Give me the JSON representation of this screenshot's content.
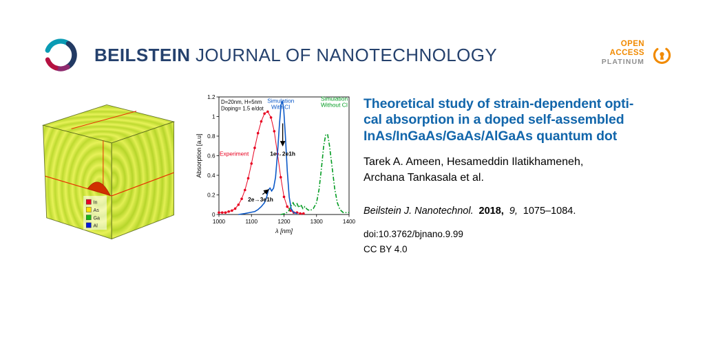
{
  "theme": {
    "navy": "#25416d",
    "accent_blue": "#1266ab",
    "orange": "#f18a00",
    "gray": "#8f8f8f"
  },
  "header": {
    "brand_bold": "BEILSTEIN",
    "brand_rest": "JOURNAL OF NANOTECHNOLOGY",
    "open_access": {
      "line1": "OPEN",
      "line2": "ACCESS",
      "line3": "PLATINUM"
    }
  },
  "article": {
    "title_line1": "Theoretical study of strain-dependent opti-",
    "title_line2": "cal absorption in a doped self-assembled",
    "title_line3": "InAs/InGaAs/GaAs/AlGaAs quantum dot",
    "authors_line1": "Tarek A. Ameen, Hesameddin Ilatikhameneh,",
    "authors_line2": "Archana Tankasala et al.",
    "citation": {
      "journal": "Beilstein J. Nanotechnol.",
      "year": "2018,",
      "volume": "9,",
      "pages": "1075–1084."
    },
    "doi": "doi:10.3762/bjnano.9.99",
    "license": "CC BY 4.0"
  },
  "cube_figure": {
    "legend": [
      {
        "label": "In",
        "color": "#e60026"
      },
      {
        "label": "As",
        "color": "#ffe200"
      },
      {
        "label": "Ga",
        "color": "#18b418"
      },
      {
        "label": "Al",
        "color": "#0018d8"
      }
    ]
  },
  "chart_data": {
    "type": "line",
    "title": "",
    "xlabel": "λ [nm]",
    "ylabel": "Absorption [a.u]",
    "xlim": [
      1000,
      1400
    ],
    "ylim": [
      0,
      1.2
    ],
    "x_ticks": [
      1000,
      1100,
      1200,
      1300,
      1400
    ],
    "y_ticks": [
      0,
      0.2,
      0.4,
      0.6,
      0.8,
      1,
      1.2
    ],
    "annotation_lines": [
      "D=20nm, H=5nm",
      "Doping= 1.5 e/dot"
    ],
    "series": [
      {
        "name": "Experiment",
        "color": "#e8001f",
        "style": "marker-line",
        "x": [
          1000,
          1010,
          1020,
          1030,
          1040,
          1050,
          1060,
          1070,
          1080,
          1090,
          1100,
          1110,
          1120,
          1130,
          1140,
          1150,
          1160,
          1170,
          1180,
          1190,
          1200,
          1210,
          1220,
          1230,
          1240,
          1250,
          1260
        ],
        "y": [
          0.02,
          0.02,
          0.02,
          0.03,
          0.04,
          0.06,
          0.1,
          0.16,
          0.25,
          0.37,
          0.52,
          0.68,
          0.83,
          0.95,
          1.03,
          1.05,
          0.99,
          0.85,
          0.62,
          0.38,
          0.18,
          0.08,
          0.04,
          0.02,
          0.02,
          0.01,
          0.01
        ]
      },
      {
        "name": "Simulation With CI",
        "color": "#0a58c8",
        "style": "solid",
        "x": [
          1060,
          1080,
          1095,
          1110,
          1120,
          1130,
          1140,
          1147,
          1152,
          1157,
          1162,
          1168,
          1174,
          1180,
          1186,
          1191,
          1195,
          1199,
          1204,
          1210,
          1216,
          1222,
          1230,
          1240
        ],
        "y": [
          0.0,
          0.01,
          0.02,
          0.03,
          0.05,
          0.08,
          0.12,
          0.18,
          0.25,
          0.27,
          0.24,
          0.27,
          0.38,
          0.62,
          0.92,
          1.12,
          1.16,
          1.08,
          0.82,
          0.45,
          0.18,
          0.06,
          0.02,
          0.01
        ]
      },
      {
        "name": "Simulation Without CI",
        "color": "#009b20",
        "style": "dashdot",
        "x": [
          1190,
          1205,
          1215,
          1222,
          1228,
          1234,
          1240,
          1246,
          1252,
          1258,
          1264,
          1272,
          1280,
          1290,
          1300,
          1308,
          1316,
          1322,
          1328,
          1334,
          1340,
          1348,
          1356,
          1364,
          1372,
          1382,
          1392,
          1400
        ],
        "y": [
          0.0,
          0.01,
          0.04,
          0.09,
          0.12,
          0.08,
          0.11,
          0.07,
          0.1,
          0.06,
          0.08,
          0.05,
          0.04,
          0.06,
          0.12,
          0.26,
          0.5,
          0.7,
          0.81,
          0.82,
          0.7,
          0.48,
          0.26,
          0.12,
          0.05,
          0.02,
          0.02,
          0.02
        ]
      }
    ],
    "text_labels": [
      {
        "lines": [
          "Experiment"
        ],
        "x": 1002,
        "y": 0.6,
        "color": "#e8001f",
        "anchor": "start",
        "bold": false
      },
      {
        "lines": [
          "Simulation",
          "With CI"
        ],
        "x": 1190,
        "y": 1.14,
        "color": "#0a58c8",
        "anchor": "middle",
        "bold": false
      },
      {
        "lines": [
          "Simulation",
          "Without CI"
        ],
        "x": 1396,
        "y": 1.16,
        "color": "#009b20",
        "anchor": "end",
        "bold": false
      },
      {
        "lines": [
          "1e→2e1h"
        ],
        "x": 1196,
        "y": 0.6,
        "color": "#000000",
        "anchor": "middle",
        "bold": true
      },
      {
        "lines": [
          "2e→3e1h"
        ],
        "x": 1128,
        "y": 0.135,
        "color": "#000000",
        "anchor": "middle",
        "bold": true
      }
    ],
    "arrows": [
      {
        "x1": 1196,
        "y1": 0.93,
        "x2": 1196,
        "y2": 0.7
      },
      {
        "x1": 1134,
        "y1": 0.205,
        "x2": 1153,
        "y2": 0.255
      }
    ],
    "legend_position": "none",
    "grid": false
  }
}
